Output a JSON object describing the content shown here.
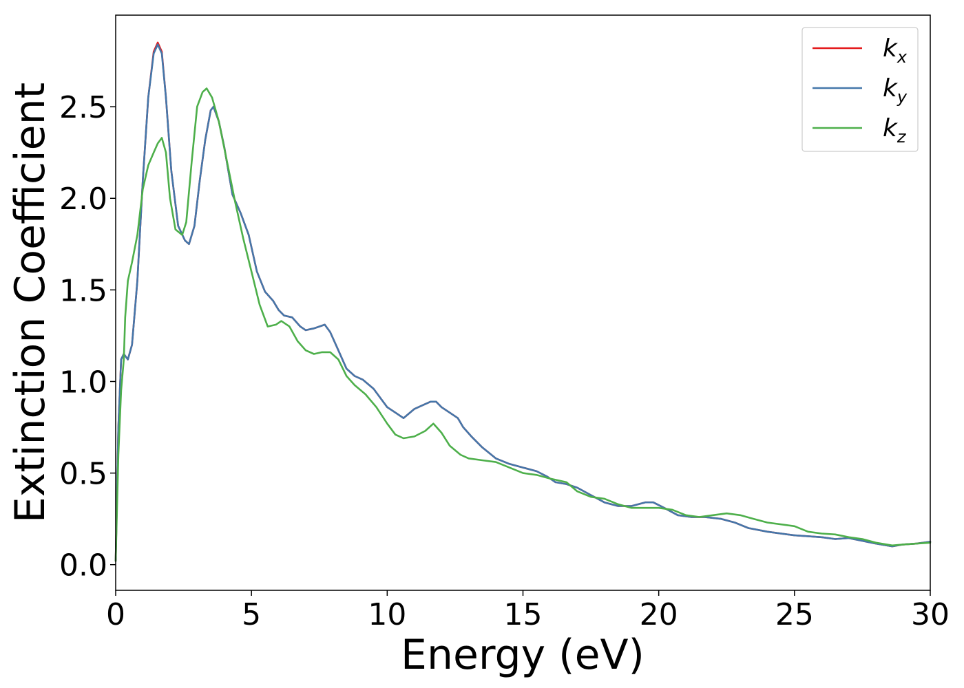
{
  "chart_data": {
    "type": "line",
    "title": "",
    "xlabel": "Energy (eV)",
    "ylabel": "Extinction Coefficient",
    "xlim": [
      0,
      30
    ],
    "ylim": [
      -0.14,
      3.0
    ],
    "xticks": [
      0,
      5,
      10,
      15,
      20,
      25,
      30
    ],
    "xtick_labels": [
      "0",
      "5",
      "10",
      "15",
      "20",
      "25",
      "30"
    ],
    "yticks": [
      0.0,
      0.5,
      1.0,
      1.5,
      2.0,
      2.5
    ],
    "ytick_labels": [
      "0.0",
      "0.5",
      "1.0",
      "1.5",
      "2.0",
      "2.5"
    ],
    "grid": false,
    "legend_position": "top-right",
    "series": [
      {
        "name": "k",
        "subscript": "x",
        "color": "#e41a1c",
        "points": [
          [
            0,
            0.02
          ],
          [
            0.1,
            0.75
          ],
          [
            0.2,
            1.12
          ],
          [
            0.3,
            1.15
          ],
          [
            0.45,
            1.12
          ],
          [
            0.6,
            1.2
          ],
          [
            0.8,
            1.55
          ],
          [
            1.0,
            2.1
          ],
          [
            1.2,
            2.55
          ],
          [
            1.4,
            2.8
          ],
          [
            1.55,
            2.85
          ],
          [
            1.7,
            2.8
          ],
          [
            1.85,
            2.55
          ],
          [
            2.05,
            2.15
          ],
          [
            2.3,
            1.85
          ],
          [
            2.55,
            1.77
          ],
          [
            2.7,
            1.75
          ],
          [
            2.9,
            1.85
          ],
          [
            3.1,
            2.1
          ],
          [
            3.3,
            2.32
          ],
          [
            3.5,
            2.48
          ],
          [
            3.6,
            2.5
          ],
          [
            3.8,
            2.42
          ],
          [
            4.0,
            2.28
          ],
          [
            4.3,
            2.02
          ],
          [
            4.6,
            1.92
          ],
          [
            4.9,
            1.8
          ],
          [
            5.2,
            1.6
          ],
          [
            5.5,
            1.49
          ],
          [
            5.8,
            1.44
          ],
          [
            6.0,
            1.39
          ],
          [
            6.2,
            1.36
          ],
          [
            6.5,
            1.35
          ],
          [
            6.8,
            1.3
          ],
          [
            7.0,
            1.28
          ],
          [
            7.3,
            1.29
          ],
          [
            7.5,
            1.3
          ],
          [
            7.7,
            1.31
          ],
          [
            7.9,
            1.27
          ],
          [
            8.2,
            1.17
          ],
          [
            8.5,
            1.07
          ],
          [
            8.8,
            1.03
          ],
          [
            9.1,
            1.01
          ],
          [
            9.5,
            0.96
          ],
          [
            9.8,
            0.9
          ],
          [
            10.0,
            0.86
          ],
          [
            10.3,
            0.83
          ],
          [
            10.6,
            0.8
          ],
          [
            11.0,
            0.85
          ],
          [
            11.3,
            0.87
          ],
          [
            11.6,
            0.89
          ],
          [
            11.8,
            0.89
          ],
          [
            12.0,
            0.86
          ],
          [
            12.3,
            0.83
          ],
          [
            12.6,
            0.8
          ],
          [
            12.8,
            0.75
          ],
          [
            13.1,
            0.7
          ],
          [
            13.5,
            0.64
          ],
          [
            14.0,
            0.58
          ],
          [
            14.5,
            0.55
          ],
          [
            15.0,
            0.53
          ],
          [
            15.5,
            0.51
          ],
          [
            15.9,
            0.48
          ],
          [
            16.2,
            0.45
          ],
          [
            16.6,
            0.44
          ],
          [
            17.0,
            0.42
          ],
          [
            17.5,
            0.38
          ],
          [
            18.0,
            0.34
          ],
          [
            18.5,
            0.32
          ],
          [
            19.0,
            0.32
          ],
          [
            19.5,
            0.34
          ],
          [
            19.8,
            0.34
          ],
          [
            20.2,
            0.31
          ],
          [
            20.7,
            0.27
          ],
          [
            21.2,
            0.26
          ],
          [
            21.7,
            0.26
          ],
          [
            22.3,
            0.25
          ],
          [
            22.8,
            0.23
          ],
          [
            23.3,
            0.2
          ],
          [
            24.0,
            0.18
          ],
          [
            25.0,
            0.16
          ],
          [
            26.0,
            0.15
          ],
          [
            26.5,
            0.14
          ],
          [
            27.0,
            0.145
          ],
          [
            27.5,
            0.13
          ],
          [
            28.0,
            0.115
          ],
          [
            28.6,
            0.1
          ],
          [
            29.0,
            0.11
          ],
          [
            29.5,
            0.115
          ],
          [
            30.0,
            0.125
          ]
        ]
      },
      {
        "name": "k",
        "subscript": "y",
        "color": "#4477aa",
        "points": [
          [
            0,
            0.02
          ],
          [
            0.1,
            0.75
          ],
          [
            0.2,
            1.12
          ],
          [
            0.3,
            1.15
          ],
          [
            0.45,
            1.12
          ],
          [
            0.6,
            1.2
          ],
          [
            0.8,
            1.55
          ],
          [
            1.0,
            2.1
          ],
          [
            1.2,
            2.55
          ],
          [
            1.4,
            2.79
          ],
          [
            1.55,
            2.84
          ],
          [
            1.7,
            2.79
          ],
          [
            1.85,
            2.55
          ],
          [
            2.05,
            2.15
          ],
          [
            2.3,
            1.85
          ],
          [
            2.55,
            1.77
          ],
          [
            2.7,
            1.75
          ],
          [
            2.9,
            1.85
          ],
          [
            3.1,
            2.1
          ],
          [
            3.3,
            2.32
          ],
          [
            3.5,
            2.48
          ],
          [
            3.6,
            2.5
          ],
          [
            3.8,
            2.42
          ],
          [
            4.0,
            2.28
          ],
          [
            4.3,
            2.02
          ],
          [
            4.6,
            1.92
          ],
          [
            4.9,
            1.8
          ],
          [
            5.2,
            1.6
          ],
          [
            5.5,
            1.49
          ],
          [
            5.8,
            1.44
          ],
          [
            6.0,
            1.39
          ],
          [
            6.2,
            1.36
          ],
          [
            6.5,
            1.35
          ],
          [
            6.8,
            1.3
          ],
          [
            7.0,
            1.28
          ],
          [
            7.3,
            1.29
          ],
          [
            7.5,
            1.3
          ],
          [
            7.7,
            1.31
          ],
          [
            7.9,
            1.27
          ],
          [
            8.2,
            1.17
          ],
          [
            8.5,
            1.07
          ],
          [
            8.8,
            1.03
          ],
          [
            9.1,
            1.01
          ],
          [
            9.5,
            0.96
          ],
          [
            9.8,
            0.9
          ],
          [
            10.0,
            0.86
          ],
          [
            10.3,
            0.83
          ],
          [
            10.6,
            0.8
          ],
          [
            11.0,
            0.85
          ],
          [
            11.3,
            0.87
          ],
          [
            11.6,
            0.89
          ],
          [
            11.8,
            0.89
          ],
          [
            12.0,
            0.86
          ],
          [
            12.3,
            0.83
          ],
          [
            12.6,
            0.8
          ],
          [
            12.8,
            0.75
          ],
          [
            13.1,
            0.7
          ],
          [
            13.5,
            0.64
          ],
          [
            14.0,
            0.58
          ],
          [
            14.5,
            0.55
          ],
          [
            15.0,
            0.53
          ],
          [
            15.5,
            0.51
          ],
          [
            15.9,
            0.48
          ],
          [
            16.2,
            0.45
          ],
          [
            16.6,
            0.44
          ],
          [
            17.0,
            0.42
          ],
          [
            17.5,
            0.38
          ],
          [
            18.0,
            0.34
          ],
          [
            18.5,
            0.32
          ],
          [
            19.0,
            0.32
          ],
          [
            19.5,
            0.34
          ],
          [
            19.8,
            0.34
          ],
          [
            20.2,
            0.31
          ],
          [
            20.7,
            0.27
          ],
          [
            21.2,
            0.26
          ],
          [
            21.7,
            0.26
          ],
          [
            22.3,
            0.25
          ],
          [
            22.8,
            0.23
          ],
          [
            23.3,
            0.2
          ],
          [
            24.0,
            0.18
          ],
          [
            25.0,
            0.16
          ],
          [
            26.0,
            0.15
          ],
          [
            26.5,
            0.14
          ],
          [
            27.0,
            0.145
          ],
          [
            27.5,
            0.13
          ],
          [
            28.0,
            0.115
          ],
          [
            28.6,
            0.1
          ],
          [
            29.0,
            0.11
          ],
          [
            29.5,
            0.115
          ],
          [
            30.0,
            0.125
          ]
        ]
      },
      {
        "name": "k",
        "subscript": "z",
        "color": "#4daf4a",
        "points": [
          [
            0,
            0.02
          ],
          [
            0.1,
            0.6
          ],
          [
            0.2,
            0.95
          ],
          [
            0.3,
            1.12
          ],
          [
            0.35,
            1.35
          ],
          [
            0.45,
            1.55
          ],
          [
            0.6,
            1.65
          ],
          [
            0.8,
            1.8
          ],
          [
            1.0,
            2.05
          ],
          [
            1.2,
            2.18
          ],
          [
            1.4,
            2.25
          ],
          [
            1.55,
            2.3
          ],
          [
            1.7,
            2.33
          ],
          [
            1.85,
            2.25
          ],
          [
            2.0,
            2.0
          ],
          [
            2.2,
            1.83
          ],
          [
            2.45,
            1.8
          ],
          [
            2.6,
            1.87
          ],
          [
            2.8,
            2.2
          ],
          [
            3.0,
            2.5
          ],
          [
            3.2,
            2.58
          ],
          [
            3.35,
            2.6
          ],
          [
            3.55,
            2.55
          ],
          [
            3.8,
            2.42
          ],
          [
            4.1,
            2.2
          ],
          [
            4.4,
            1.98
          ],
          [
            4.7,
            1.78
          ],
          [
            5.0,
            1.6
          ],
          [
            5.3,
            1.42
          ],
          [
            5.6,
            1.3
          ],
          [
            5.9,
            1.31
          ],
          [
            6.1,
            1.33
          ],
          [
            6.4,
            1.3
          ],
          [
            6.7,
            1.22
          ],
          [
            7.0,
            1.17
          ],
          [
            7.3,
            1.15
          ],
          [
            7.6,
            1.16
          ],
          [
            7.9,
            1.16
          ],
          [
            8.2,
            1.12
          ],
          [
            8.5,
            1.03
          ],
          [
            8.8,
            0.98
          ],
          [
            9.2,
            0.93
          ],
          [
            9.6,
            0.86
          ],
          [
            10.0,
            0.77
          ],
          [
            10.3,
            0.71
          ],
          [
            10.6,
            0.69
          ],
          [
            11.0,
            0.7
          ],
          [
            11.4,
            0.73
          ],
          [
            11.7,
            0.77
          ],
          [
            12.0,
            0.72
          ],
          [
            12.3,
            0.65
          ],
          [
            12.7,
            0.6
          ],
          [
            13.0,
            0.58
          ],
          [
            13.5,
            0.57
          ],
          [
            14.0,
            0.56
          ],
          [
            14.5,
            0.53
          ],
          [
            15.0,
            0.5
          ],
          [
            15.5,
            0.49
          ],
          [
            16.0,
            0.47
          ],
          [
            16.6,
            0.45
          ],
          [
            17.0,
            0.4
          ],
          [
            17.5,
            0.37
          ],
          [
            18.0,
            0.36
          ],
          [
            18.5,
            0.33
          ],
          [
            19.0,
            0.31
          ],
          [
            19.5,
            0.31
          ],
          [
            20.0,
            0.31
          ],
          [
            20.5,
            0.3
          ],
          [
            21.0,
            0.27
          ],
          [
            21.5,
            0.26
          ],
          [
            22.0,
            0.27
          ],
          [
            22.5,
            0.28
          ],
          [
            23.0,
            0.27
          ],
          [
            23.5,
            0.25
          ],
          [
            24.0,
            0.23
          ],
          [
            25.0,
            0.21
          ],
          [
            25.5,
            0.18
          ],
          [
            26.0,
            0.17
          ],
          [
            26.5,
            0.165
          ],
          [
            27.0,
            0.15
          ],
          [
            27.5,
            0.14
          ],
          [
            28.0,
            0.12
          ],
          [
            28.6,
            0.105
          ],
          [
            29.0,
            0.11
          ],
          [
            29.5,
            0.115
          ],
          [
            30.0,
            0.12
          ]
        ]
      }
    ]
  }
}
